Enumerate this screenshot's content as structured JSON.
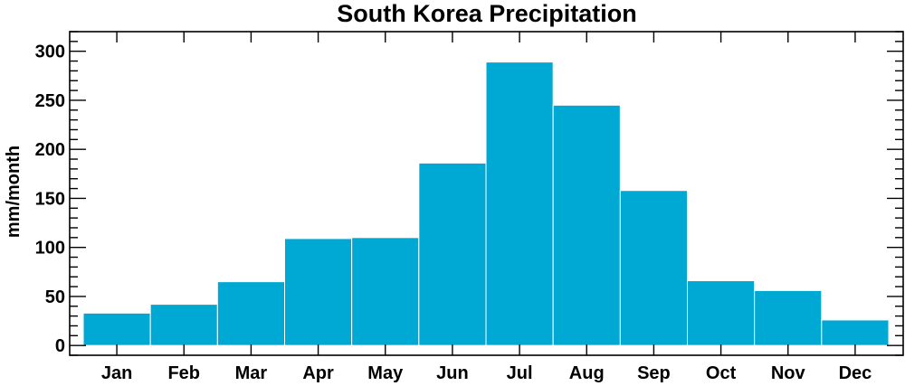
{
  "chart_data": {
    "type": "bar",
    "title": "South Korea Precipitation",
    "xlabel": "",
    "ylabel": "mm/month",
    "categories": [
      "Jan",
      "Feb",
      "Mar",
      "Apr",
      "May",
      "Jun",
      "Jul",
      "Aug",
      "Sep",
      "Oct",
      "Nov",
      "Dec"
    ],
    "values": [
      33,
      42,
      65,
      109,
      110,
      186,
      289,
      245,
      158,
      66,
      56,
      26
    ],
    "ylim": [
      -10,
      320
    ],
    "yticks": [
      0,
      50,
      100,
      150,
      200,
      250,
      300
    ],
    "ytick_labels": [
      "0",
      "50",
      "100",
      "150",
      "200",
      "250",
      "300"
    ],
    "bar_color": "#00a8d4",
    "grid": false,
    "legend": "none"
  }
}
